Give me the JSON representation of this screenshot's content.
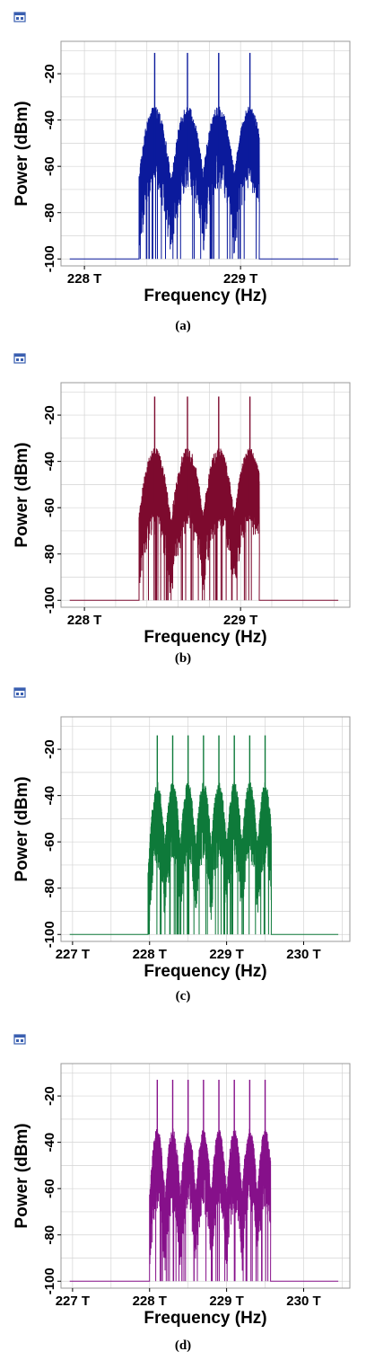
{
  "colors": {
    "icon": "#3a5fb0",
    "grid": "#d4d4d4",
    "frame": "#9a9a9a"
  },
  "panels": [
    {
      "caption": "(a)",
      "chart_data": {
        "type": "line",
        "title": "",
        "xlabel": "Frequency (Hz)",
        "ylabel": "Power (dBm)",
        "x_unit": "THz",
        "xlim": [
          227.85,
          229.7
        ],
        "ylim": [
          -103,
          -6
        ],
        "xticks": [
          228,
          229
        ],
        "xtick_labels": [
          "228 T",
          "229 T"
        ],
        "yticks": [
          -20,
          -40,
          -60,
          -80,
          -100
        ],
        "ytick_labels": [
          "-20",
          "-40",
          "-60",
          "-80",
          "-100"
        ],
        "grid": true,
        "color": "#0b1a9c",
        "noise_floor_dbm": -100,
        "band_start_thz": 228.35,
        "band_end_thz": 229.12,
        "carriers_thz": [
          228.45,
          228.66,
          228.86,
          229.06
        ],
        "carrier_peak_dbm": -11,
        "envelope_peak_dbm": -37
      }
    },
    {
      "caption": "(b)",
      "chart_data": {
        "type": "line",
        "title": "",
        "xlabel": "Frequency (Hz)",
        "ylabel": "Power (dBm)",
        "x_unit": "THz",
        "xlim": [
          227.85,
          229.7
        ],
        "ylim": [
          -103,
          -6
        ],
        "xticks": [
          228,
          229
        ],
        "xtick_labels": [
          "228 T",
          "229 T"
        ],
        "yticks": [
          -20,
          -40,
          -60,
          -80,
          -100
        ],
        "ytick_labels": [
          "-20",
          "-40",
          "-60",
          "-80",
          "-100"
        ],
        "grid": true,
        "color": "#7d0a2e",
        "noise_floor_dbm": -100,
        "band_start_thz": 228.35,
        "band_end_thz": 229.12,
        "carriers_thz": [
          228.45,
          228.66,
          228.86,
          229.06
        ],
        "carrier_peak_dbm": -12,
        "envelope_peak_dbm": -37
      }
    },
    {
      "caption": "(c)",
      "chart_data": {
        "type": "line",
        "title": "",
        "xlabel": "Frequency (Hz)",
        "ylabel": "Power (dBm)",
        "x_unit": "THz",
        "xlim": [
          226.85,
          230.6
        ],
        "ylim": [
          -103,
          -6
        ],
        "xticks": [
          227,
          228,
          229,
          230
        ],
        "xtick_labels": [
          "227 T",
          "228 T",
          "229 T",
          "230 T"
        ],
        "yticks": [
          -20,
          -40,
          -60,
          -80,
          -100
        ],
        "ytick_labels": [
          "-20",
          "-40",
          "-60",
          "-80",
          "-100"
        ],
        "grid": true,
        "color": "#0e7a3a",
        "noise_floor_dbm": -100,
        "band_start_thz": 227.98,
        "band_end_thz": 229.58,
        "carriers_thz": [
          228.1,
          228.3,
          228.5,
          228.7,
          228.9,
          229.1,
          229.3,
          229.5
        ],
        "carrier_peak_dbm": -14,
        "envelope_peak_dbm": -37
      }
    },
    {
      "caption": "(d)",
      "chart_data": {
        "type": "line",
        "title": "",
        "xlabel": "Frequency (Hz)",
        "ylabel": "Power (dBm)",
        "x_unit": "THz",
        "xlim": [
          226.85,
          230.6
        ],
        "ylim": [
          -103,
          -6
        ],
        "xticks": [
          227,
          228,
          229,
          230
        ],
        "xtick_labels": [
          "227 T",
          "228 T",
          "229 T",
          "230 T"
        ],
        "yticks": [
          -20,
          -40,
          -60,
          -80,
          -100
        ],
        "ytick_labels": [
          "-20",
          "-40",
          "-60",
          "-80",
          "-100"
        ],
        "grid": true,
        "color": "#86108a",
        "noise_floor_dbm": -100,
        "band_start_thz": 228.0,
        "band_end_thz": 229.57,
        "carriers_thz": [
          228.1,
          228.3,
          228.5,
          228.7,
          228.9,
          229.1,
          229.3,
          229.5
        ],
        "carrier_peak_dbm": -13,
        "envelope_peak_dbm": -37
      }
    }
  ]
}
